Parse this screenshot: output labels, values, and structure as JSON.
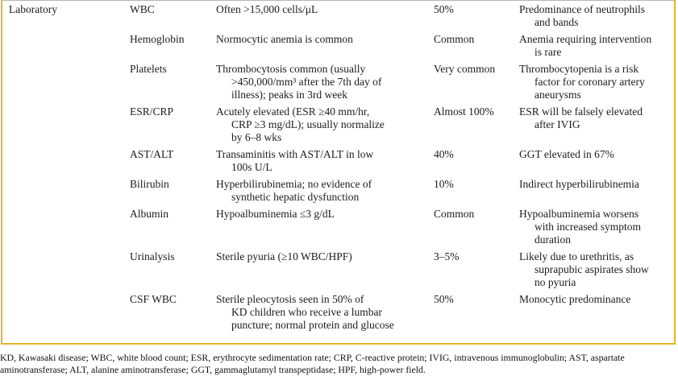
{
  "table": {
    "category_label": "Laboratory",
    "rows": [
      {
        "test": "WBC",
        "finding": "Often >15,000 cells/μL",
        "frequency": "50%",
        "note": "Predominance of neutrophils\nand bands"
      },
      {
        "test": "Hemoglobin",
        "finding": "Normocytic anemia is common",
        "frequency": "Common",
        "note": "Anemia requiring intervention\nis rare"
      },
      {
        "test": "Platelets",
        "finding": "Thrombocytosis common (usually\n>450,000/mm³ after the 7th day of\nillness); peaks in 3rd week",
        "frequency": "Very common",
        "note": "Thrombocytopenia is a risk\nfactor for coronary artery\naneurysms"
      },
      {
        "test": "ESR/CRP",
        "finding": "Acutely elevated (ESR ≥40 mm/hr,\nCRP ≥3 mg/dL); usually normalize\nby 6–8 wks",
        "frequency": "Almost 100%",
        "note": "ESR will be falsely elevated\nafter IVIG"
      },
      {
        "test": "AST/ALT",
        "finding": "Transaminitis with AST/ALT in low\n100s U/L",
        "frequency": "40%",
        "note": "GGT elevated in 67%"
      },
      {
        "test": "Bilirubin",
        "finding": "Hyperbilirubinemia; no evidence of\nsynthetic hepatic dysfunction",
        "frequency": "10%",
        "note": "Indirect hyperbilirubinemia"
      },
      {
        "test": "Albumin",
        "finding": "Hypoalbuminemia ≤3 g/dL",
        "frequency": "Common",
        "note": "Hypoalbuminemia worsens\nwith increased symptom\nduration"
      },
      {
        "test": "Urinalysis",
        "finding": "Sterile pyuria (≥10 WBC/HPF)",
        "frequency": "3–5%",
        "note": "Likely due to urethritis, as\nsuprapubic aspirates show\nno pyuria"
      },
      {
        "test": "CSF WBC",
        "finding": "Sterile pleocytosis seen in 50% of\nKD children who receive a lumbar\npuncture; normal protein and glucose",
        "frequency": "50%",
        "note": "Monocytic predominance"
      }
    ]
  },
  "footnote": "KD, Kawasaki disease; WBC, white blood count; ESR, erythrocyte sedimentation rate; CRP, C-reactive protein; IVIG, intravenous immunoglobulin; AST, aspartate aminotransferase; ALT, alanine aminotransferase; GGT, gammaglutamyl transpeptidase; HPF, high-power field.",
  "colors": {
    "table_border": "#E6B225"
  }
}
